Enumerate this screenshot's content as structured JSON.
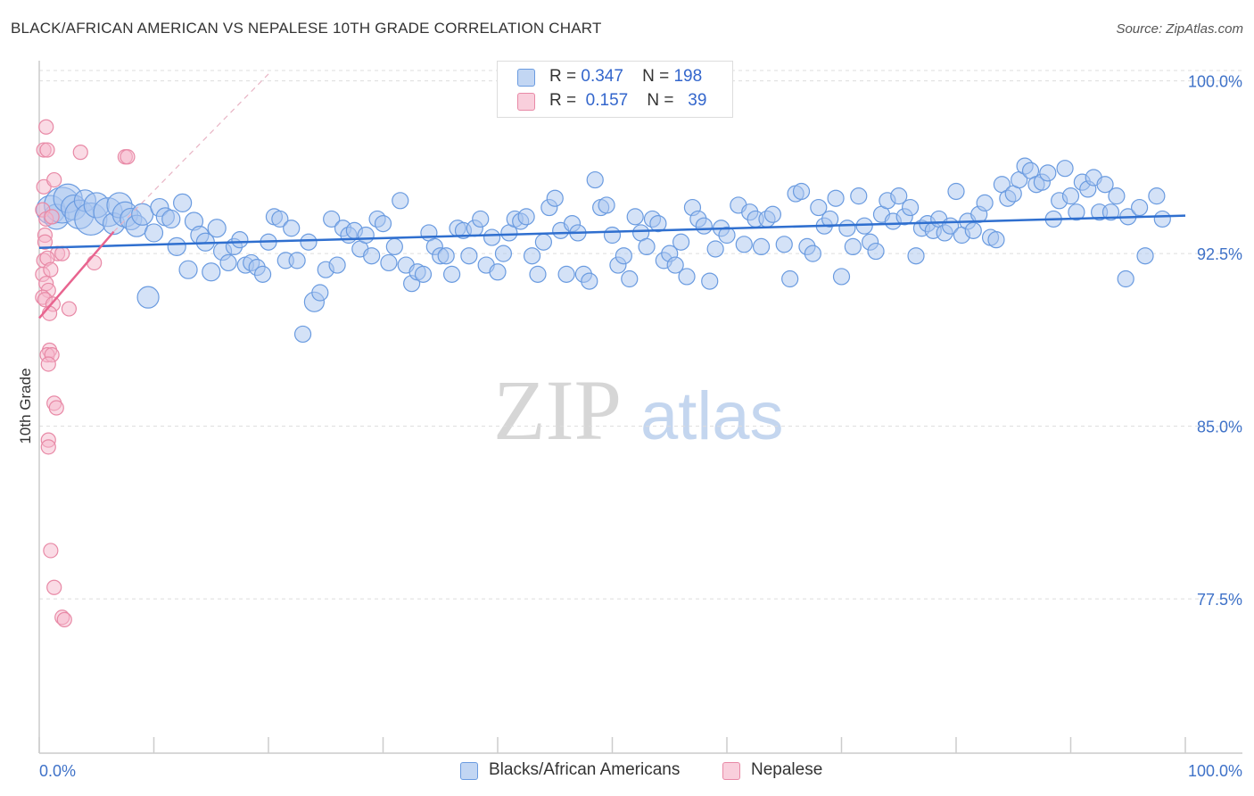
{
  "title": "BLACK/AFRICAN AMERICAN VS NEPALESE 10TH GRADE CORRELATION CHART",
  "source": "Source: ZipAtlas.com",
  "watermark": {
    "zip": "ZIP",
    "atlas": "atlas"
  },
  "legend": {
    "rows": [
      {
        "r_label": "R =",
        "r_value": "0.347",
        "n_label": "N =",
        "n_value": "198",
        "color": "#a9c6f0"
      },
      {
        "r_label": "R =",
        "r_value": "0.157",
        "n_label": "N =",
        "n_value": "39",
        "color": "#f6b8cb"
      }
    ]
  },
  "colors": {
    "blue_fill": "#a9c6f0",
    "blue_stroke": "#6a9be0",
    "blue_line": "#2f6fcf",
    "pink_fill": "#f6b8cb",
    "pink_stroke": "#e889a6",
    "pink_line": "#e8648f",
    "axis_text": "#3f72c8",
    "grid": "#dddddd"
  },
  "chart_data": {
    "type": "scatter",
    "title": "BLACK/AFRICAN AMERICAN VS NEPALESE 10TH GRADE CORRELATION CHART",
    "xlabel": "",
    "ylabel": "10th Grade",
    "xlim": [
      0,
      100
    ],
    "ylim": [
      70.8,
      100.8
    ],
    "x_tick_labels": [
      "0.0%",
      "100.0%"
    ],
    "y_ticks": [
      100.0,
      92.5,
      85.0,
      77.5
    ],
    "y_tick_labels": [
      "100.0%",
      "92.5%",
      "85.0%",
      "77.5%"
    ],
    "grid": "horizontal dashed",
    "legend_position": "bottom",
    "series": [
      {
        "name": "Blacks/African Americans",
        "trend": {
          "x": [
            0,
            100
          ],
          "y": [
            92.75,
            94.15
          ]
        },
        "points": [
          [
            1,
            94.4,
            16
          ],
          [
            1.5,
            94.1,
            14
          ],
          [
            2,
            94.6,
            20
          ],
          [
            2.5,
            94.9,
            16
          ],
          [
            3,
            94.5,
            14
          ],
          [
            3.5,
            94.2,
            16
          ],
          [
            4,
            94.8,
            12
          ],
          [
            4.5,
            94.0,
            18
          ],
          [
            5,
            94.6,
            14
          ],
          [
            6,
            94.3,
            16
          ],
          [
            6.5,
            93.8,
            12
          ],
          [
            7,
            94.6,
            14
          ],
          [
            7.5,
            94.2,
            14
          ],
          [
            8,
            94.0,
            12
          ],
          [
            8.5,
            93.7,
            12
          ],
          [
            9,
            94.2,
            12
          ],
          [
            9.5,
            90.6,
            12
          ],
          [
            10,
            93.4,
            10
          ],
          [
            10.5,
            94.5,
            10
          ],
          [
            11,
            94.1,
            10
          ],
          [
            11.5,
            94.0,
            10
          ],
          [
            12,
            92.8,
            10
          ],
          [
            12.5,
            94.7,
            10
          ],
          [
            13,
            91.8,
            10
          ],
          [
            13.5,
            93.9,
            10
          ],
          [
            14,
            93.3,
            10
          ],
          [
            14.5,
            93.0,
            10
          ],
          [
            15,
            91.7,
            10
          ],
          [
            15.5,
            93.6,
            10
          ],
          [
            16,
            92.6,
            10
          ],
          [
            16.5,
            92.1,
            9
          ],
          [
            17,
            92.8,
            9
          ],
          [
            17.5,
            93.1,
            9
          ],
          [
            18,
            92.0,
            9
          ],
          [
            18.5,
            92.1,
            9
          ],
          [
            19,
            91.9,
            9
          ],
          [
            19.5,
            91.6,
            9
          ],
          [
            20,
            93.0,
            9
          ],
          [
            20.5,
            94.1,
            9
          ],
          [
            21,
            94.0,
            9
          ],
          [
            21.5,
            92.2,
            9
          ],
          [
            22,
            93.6,
            9
          ],
          [
            22.5,
            92.2,
            9
          ],
          [
            23,
            89.0,
            9
          ],
          [
            23.5,
            93.0,
            9
          ],
          [
            24,
            90.4,
            11
          ],
          [
            24.5,
            90.8,
            9
          ],
          [
            25,
            91.8,
            9
          ],
          [
            25.5,
            94.0,
            9
          ],
          [
            26,
            92.0,
            9
          ],
          [
            26.5,
            93.6,
            9
          ],
          [
            27,
            93.3,
            9
          ],
          [
            27.5,
            93.5,
            9
          ],
          [
            28,
            92.7,
            9
          ],
          [
            28.5,
            93.3,
            9
          ],
          [
            29,
            92.4,
            9
          ],
          [
            29.5,
            94.0,
            9
          ],
          [
            30,
            93.8,
            9
          ],
          [
            30.5,
            92.1,
            9
          ],
          [
            31,
            92.8,
            9
          ],
          [
            31.5,
            94.8,
            9
          ],
          [
            32,
            92.0,
            9
          ],
          [
            32.5,
            91.2,
            9
          ],
          [
            33,
            91.7,
            9
          ],
          [
            33.5,
            91.6,
            9
          ],
          [
            34,
            93.4,
            9
          ],
          [
            34.5,
            92.8,
            9
          ],
          [
            35,
            92.4,
            9
          ],
          [
            35.5,
            92.4,
            9
          ],
          [
            36,
            91.6,
            9
          ],
          [
            36.5,
            93.6,
            9
          ],
          [
            37,
            93.5,
            9
          ],
          [
            37.5,
            92.4,
            9
          ],
          [
            38,
            93.6,
            9
          ],
          [
            38.5,
            94.0,
            9
          ],
          [
            39,
            92.0,
            9
          ],
          [
            39.5,
            93.2,
            9
          ],
          [
            40,
            91.7,
            9
          ],
          [
            40.5,
            92.5,
            9
          ],
          [
            41,
            93.4,
            9
          ],
          [
            41.5,
            94.0,
            9
          ],
          [
            42,
            93.9,
            9
          ],
          [
            42.5,
            94.1,
            9
          ],
          [
            43,
            92.4,
            9
          ],
          [
            43.5,
            91.6,
            9
          ],
          [
            44,
            93.0,
            9
          ],
          [
            44.5,
            94.5,
            9
          ],
          [
            45,
            94.9,
            9
          ],
          [
            45.5,
            93.5,
            9
          ],
          [
            46,
            91.6,
            9
          ],
          [
            46.5,
            93.8,
            9
          ],
          [
            47,
            93.4,
            9
          ],
          [
            47.5,
            91.6,
            9
          ],
          [
            48,
            91.3,
            9
          ],
          [
            48.5,
            95.7,
            9
          ],
          [
            49,
            94.5,
            9
          ],
          [
            49.5,
            94.6,
            9
          ],
          [
            50,
            93.3,
            9
          ],
          [
            50.5,
            92.0,
            9
          ],
          [
            51,
            92.4,
            9
          ],
          [
            51.5,
            91.4,
            9
          ],
          [
            52,
            94.1,
            9
          ],
          [
            52.5,
            93.4,
            9
          ],
          [
            53,
            92.8,
            9
          ],
          [
            53.5,
            94.0,
            9
          ],
          [
            54,
            93.8,
            9
          ],
          [
            54.5,
            92.2,
            9
          ],
          [
            55,
            92.5,
            9
          ],
          [
            55.5,
            92.0,
            9
          ],
          [
            56,
            93.0,
            9
          ],
          [
            56.5,
            91.5,
            9
          ],
          [
            57,
            94.5,
            9
          ],
          [
            57.5,
            94.0,
            9
          ],
          [
            58,
            93.7,
            9
          ],
          [
            58.5,
            91.3,
            9
          ],
          [
            59,
            92.7,
            9
          ],
          [
            59.5,
            93.6,
            9
          ],
          [
            60,
            93.3,
            9
          ],
          [
            61,
            94.6,
            9
          ],
          [
            61.5,
            92.9,
            9
          ],
          [
            62,
            94.3,
            9
          ],
          [
            62.5,
            94.0,
            9
          ],
          [
            63,
            92.8,
            9
          ],
          [
            63.5,
            94.0,
            9
          ],
          [
            64,
            94.2,
            9
          ],
          [
            65,
            92.9,
            9
          ],
          [
            65.5,
            91.4,
            9
          ],
          [
            66,
            95.1,
            9
          ],
          [
            66.5,
            95.2,
            9
          ],
          [
            67,
            92.8,
            9
          ],
          [
            67.5,
            92.5,
            9
          ],
          [
            68,
            94.5,
            9
          ],
          [
            68.5,
            93.7,
            9
          ],
          [
            69,
            94.0,
            9
          ],
          [
            69.5,
            94.9,
            9
          ],
          [
            70,
            91.5,
            9
          ],
          [
            70.5,
            93.6,
            9
          ],
          [
            71,
            92.8,
            9
          ],
          [
            71.5,
            95.0,
            9
          ],
          [
            72,
            93.7,
            9
          ],
          [
            72.5,
            93.0,
            9
          ],
          [
            73,
            92.6,
            9
          ],
          [
            73.5,
            94.2,
            9
          ],
          [
            74,
            94.8,
            9
          ],
          [
            74.5,
            93.9,
            9
          ],
          [
            75,
            95.0,
            9
          ],
          [
            75.5,
            94.1,
            9
          ],
          [
            76,
            94.5,
            9
          ],
          [
            76.5,
            92.4,
            9
          ],
          [
            77,
            93.6,
            9
          ],
          [
            77.5,
            93.8,
            9
          ],
          [
            78,
            93.5,
            9
          ],
          [
            78.5,
            94.0,
            9
          ],
          [
            79,
            93.4,
            9
          ],
          [
            79.5,
            93.7,
            9
          ],
          [
            80,
            95.2,
            9
          ],
          [
            80.5,
            93.3,
            9
          ],
          [
            81,
            93.9,
            9
          ],
          [
            81.5,
            93.5,
            9
          ],
          [
            82,
            94.2,
            9
          ],
          [
            82.5,
            94.7,
            9
          ],
          [
            83,
            93.2,
            9
          ],
          [
            83.5,
            93.1,
            9
          ],
          [
            84,
            95.5,
            9
          ],
          [
            84.5,
            94.9,
            9
          ],
          [
            85,
            95.1,
            9
          ],
          [
            85.5,
            95.7,
            9
          ],
          [
            86,
            96.3,
            9
          ],
          [
            86.5,
            96.1,
            9
          ],
          [
            87,
            95.5,
            9
          ],
          [
            87.5,
            95.6,
            9
          ],
          [
            88,
            96.0,
            9
          ],
          [
            88.5,
            94.0,
            9
          ],
          [
            89,
            94.8,
            9
          ],
          [
            89.5,
            96.2,
            9
          ],
          [
            90,
            95.0,
            9
          ],
          [
            90.5,
            94.3,
            9
          ],
          [
            91,
            95.6,
            9
          ],
          [
            91.5,
            95.3,
            9
          ],
          [
            92,
            95.8,
            9
          ],
          [
            92.5,
            94.3,
            9
          ],
          [
            93,
            95.5,
            9
          ],
          [
            93.5,
            94.3,
            9
          ],
          [
            94,
            95.0,
            9
          ],
          [
            95,
            94.1,
            9
          ],
          [
            97.5,
            95.0,
            9
          ],
          [
            98,
            94.0,
            9
          ],
          [
            96.5,
            92.4,
            9
          ],
          [
            96,
            94.5,
            9
          ],
          [
            94.8,
            91.4,
            9
          ]
        ]
      },
      {
        "name": "Nepalese",
        "trend": {
          "x": [
            0,
            6.5
          ],
          "y": [
            89.7,
            93.45
          ]
        },
        "trend_extension": {
          "x": [
            6.5,
            20
          ],
          "y": [
            93.45,
            100.3
          ]
        },
        "points": [
          [
            0.6,
            98.0,
            8
          ],
          [
            0.4,
            97.0,
            8
          ],
          [
            0.7,
            97.0,
            8
          ],
          [
            3.6,
            96.9,
            8
          ],
          [
            7.5,
            96.7,
            8
          ],
          [
            7.7,
            96.7,
            8
          ],
          [
            0.4,
            95.4,
            8
          ],
          [
            1.3,
            95.7,
            8
          ],
          [
            0.3,
            94.4,
            8
          ],
          [
            0.6,
            94.0,
            8
          ],
          [
            1.1,
            94.1,
            8
          ],
          [
            0.5,
            93.3,
            8
          ],
          [
            1.6,
            92.5,
            8
          ],
          [
            2.0,
            92.5,
            8
          ],
          [
            0.4,
            92.2,
            8
          ],
          [
            0.7,
            92.3,
            8
          ],
          [
            4.8,
            92.1,
            8
          ],
          [
            0.3,
            91.6,
            8
          ],
          [
            1.0,
            91.8,
            8
          ],
          [
            0.6,
            91.2,
            8
          ],
          [
            0.8,
            90.9,
            8
          ],
          [
            0.3,
            90.6,
            8
          ],
          [
            0.5,
            90.5,
            8
          ],
          [
            1.2,
            90.3,
            8
          ],
          [
            2.6,
            90.1,
            8
          ],
          [
            0.9,
            88.3,
            8
          ],
          [
            0.7,
            88.1,
            8
          ],
          [
            1.1,
            88.1,
            8
          ],
          [
            0.8,
            87.7,
            8
          ],
          [
            1.3,
            86.0,
            8
          ],
          [
            1.5,
            85.8,
            8
          ],
          [
            0.8,
            84.4,
            8
          ],
          [
            0.8,
            84.1,
            8
          ],
          [
            1.0,
            79.6,
            8
          ],
          [
            1.3,
            78.0,
            8
          ],
          [
            2.0,
            76.7,
            8
          ],
          [
            2.2,
            76.6,
            8
          ],
          [
            0.5,
            93.0,
            8
          ],
          [
            0.9,
            89.9,
            8
          ]
        ]
      }
    ]
  },
  "bottom_legend": [
    {
      "label": "Blacks/African Americans",
      "color": "#a9c6f0"
    },
    {
      "label": "Nepalese",
      "color": "#f6b8cb"
    }
  ]
}
